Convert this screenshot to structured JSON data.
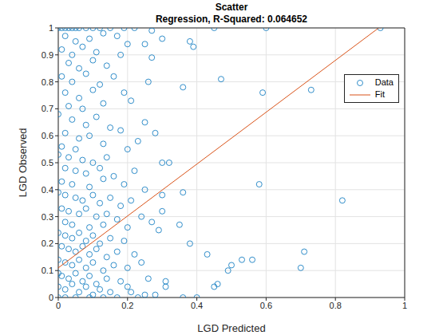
{
  "chart_data": {
    "type": "scatter",
    "title": "Scatter",
    "subtitle": "Regression, R-Squared: 0.064652",
    "x_label": "LGD Predicted",
    "y_label": "LGD Observed",
    "xlim": [
      0,
      1
    ],
    "ylim": [
      0,
      1
    ],
    "xticks": [
      0,
      0.2,
      0.4,
      0.6,
      0.8,
      1
    ],
    "yticks": [
      0,
      0.1,
      0.2,
      0.3,
      0.4,
      0.5,
      0.6,
      0.7,
      0.8,
      0.9,
      1
    ],
    "grid": true,
    "legend": "northeast",
    "series": [
      {
        "name": "Data",
        "type": "scatter",
        "marker": "circle",
        "color": "#0072bd",
        "x": [
          0,
          0.01,
          0.02,
          0.03,
          0.04,
          0.05,
          0.06,
          0.08,
          0.1,
          0.12,
          0.15,
          0.19,
          0.22,
          0.27,
          0.02,
          0.05,
          0.09,
          0.13,
          0.17,
          0.01,
          0.04,
          0.07,
          0.11,
          0.2,
          0.25,
          0.03,
          0.06,
          0.1,
          0.14,
          0.18,
          0.01,
          0.04,
          0.08,
          0.12,
          0.16,
          0.02,
          0.06,
          0.1,
          0.19,
          0.03,
          0.07,
          0.13,
          0.21,
          0.26,
          0,
          0.04,
          0.08,
          0.11,
          0.15,
          0.02,
          0.06,
          0.09,
          0.13,
          0.18,
          0.23,
          0.01,
          0.05,
          0.2,
          0,
          0.03,
          0.07,
          0.1,
          0.14,
          0.02,
          0.05,
          0.08,
          0.12,
          0.16,
          0.22,
          0.01,
          0.04,
          0.09,
          0.13,
          0.19,
          0.25,
          0,
          0.02,
          0.05,
          0.07,
          0.1,
          0.12,
          0.15,
          0.18,
          0.21,
          0.01,
          0.03,
          0.06,
          0.08,
          0.11,
          0.14,
          0.17,
          0.24,
          0.02,
          0.04,
          0.09,
          0.13,
          0.2,
          0.27,
          0,
          0.02,
          0.04,
          0.06,
          0.08,
          0.1,
          0.12,
          0.15,
          0.19,
          0.01,
          0.03,
          0.05,
          0.07,
          0.09,
          0.11,
          0.14,
          0.17,
          0.22,
          0,
          0.02,
          0.04,
          0.06,
          0.08,
          0.1,
          0.13,
          0.16,
          0.2,
          0.24,
          0,
          0.01,
          0.03,
          0.05,
          0.07,
          0.09,
          0.11,
          0.14,
          0.18,
          0,
          0.02,
          0.04,
          0.06,
          0.08,
          0.1,
          0.12,
          0.15,
          0.2,
          0.25,
          0,
          0.02,
          0.05,
          0.09,
          0.13,
          0.17,
          0.23,
          0.28,
          0.45,
          0.6,
          0.93,
          0.3,
          0.38,
          0.39,
          0.27,
          0.47,
          0.36,
          0.59,
          0.73,
          0.28,
          0.25,
          0.3,
          0.32,
          0.36,
          0.3,
          0.58,
          0.82,
          0.3,
          0.35,
          0.29,
          0.43,
          0.38,
          0.5,
          0.53,
          0.56,
          0.49,
          0.7,
          0.71,
          0.46,
          0.45,
          0.31,
          0.36,
          0.4,
          0.31,
          0.21,
          0.26
        ],
        "values": [
          1,
          1,
          1,
          1,
          1,
          1,
          1,
          1,
          1,
          1,
          1,
          1,
          1,
          0.99,
          0.97,
          0.95,
          0.96,
          0.98,
          0.97,
          0.92,
          0.9,
          0.93,
          0.91,
          0.94,
          0.94,
          0.87,
          0.85,
          0.88,
          0.86,
          0.9,
          0.82,
          0.8,
          0.83,
          0.79,
          0.82,
          0.76,
          0.74,
          0.77,
          0.76,
          0.71,
          0.7,
          0.72,
          0.73,
          0.8,
          0.68,
          0.66,
          0.64,
          0.67,
          0.63,
          0.61,
          0.59,
          0.6,
          0.57,
          0.62,
          0.58,
          0.56,
          0.55,
          0.55,
          0.53,
          0.52,
          0.51,
          0.5,
          0.52,
          0.48,
          0.47,
          0.46,
          0.48,
          0.45,
          0.47,
          0.43,
          0.42,
          0.41,
          0.44,
          0.42,
          0.4,
          0.39,
          0.38,
          0.37,
          0.36,
          0.38,
          0.35,
          0.37,
          0.34,
          0.36,
          0.33,
          0.32,
          0.31,
          0.33,
          0.3,
          0.31,
          0.29,
          0.3,
          0.28,
          0.27,
          0.26,
          0.27,
          0.26,
          0.28,
          0.24,
          0.23,
          0.22,
          0.24,
          0.21,
          0.23,
          0.2,
          0.22,
          0.21,
          0.19,
          0.18,
          0.17,
          0.19,
          0.16,
          0.18,
          0.15,
          0.17,
          0.16,
          0.14,
          0.13,
          0.12,
          0.14,
          0.11,
          0.13,
          0.1,
          0.12,
          0.11,
          0.13,
          0.09,
          0.08,
          0.07,
          0.09,
          0.06,
          0.08,
          0.05,
          0.07,
          0.06,
          0.04,
          0.03,
          0.05,
          0.02,
          0.04,
          0.01,
          0.03,
          0.02,
          0.04,
          0.01,
          0,
          0,
          0,
          0,
          0,
          0,
          0,
          0.01,
          1,
          1,
          1,
          0.96,
          0.95,
          0.93,
          0.89,
          0.81,
          0.78,
          0.76,
          0.77,
          0.61,
          0.65,
          0.5,
          0.5,
          0.39,
          0.38,
          0.42,
          0.36,
          0.32,
          0.27,
          0.25,
          0.16,
          0.2,
          0.12,
          0.14,
          0.14,
          0.1,
          0.11,
          0.17,
          0.05,
          0.04,
          0.06,
          0,
          0,
          0.04,
          0.02,
          0.07
        ]
      },
      {
        "name": "Fit",
        "type": "line",
        "line_style": "solid",
        "color": "#d95319",
        "x": [
          0,
          0.925
        ],
        "values": [
          0.11,
          1
        ]
      }
    ]
  }
}
